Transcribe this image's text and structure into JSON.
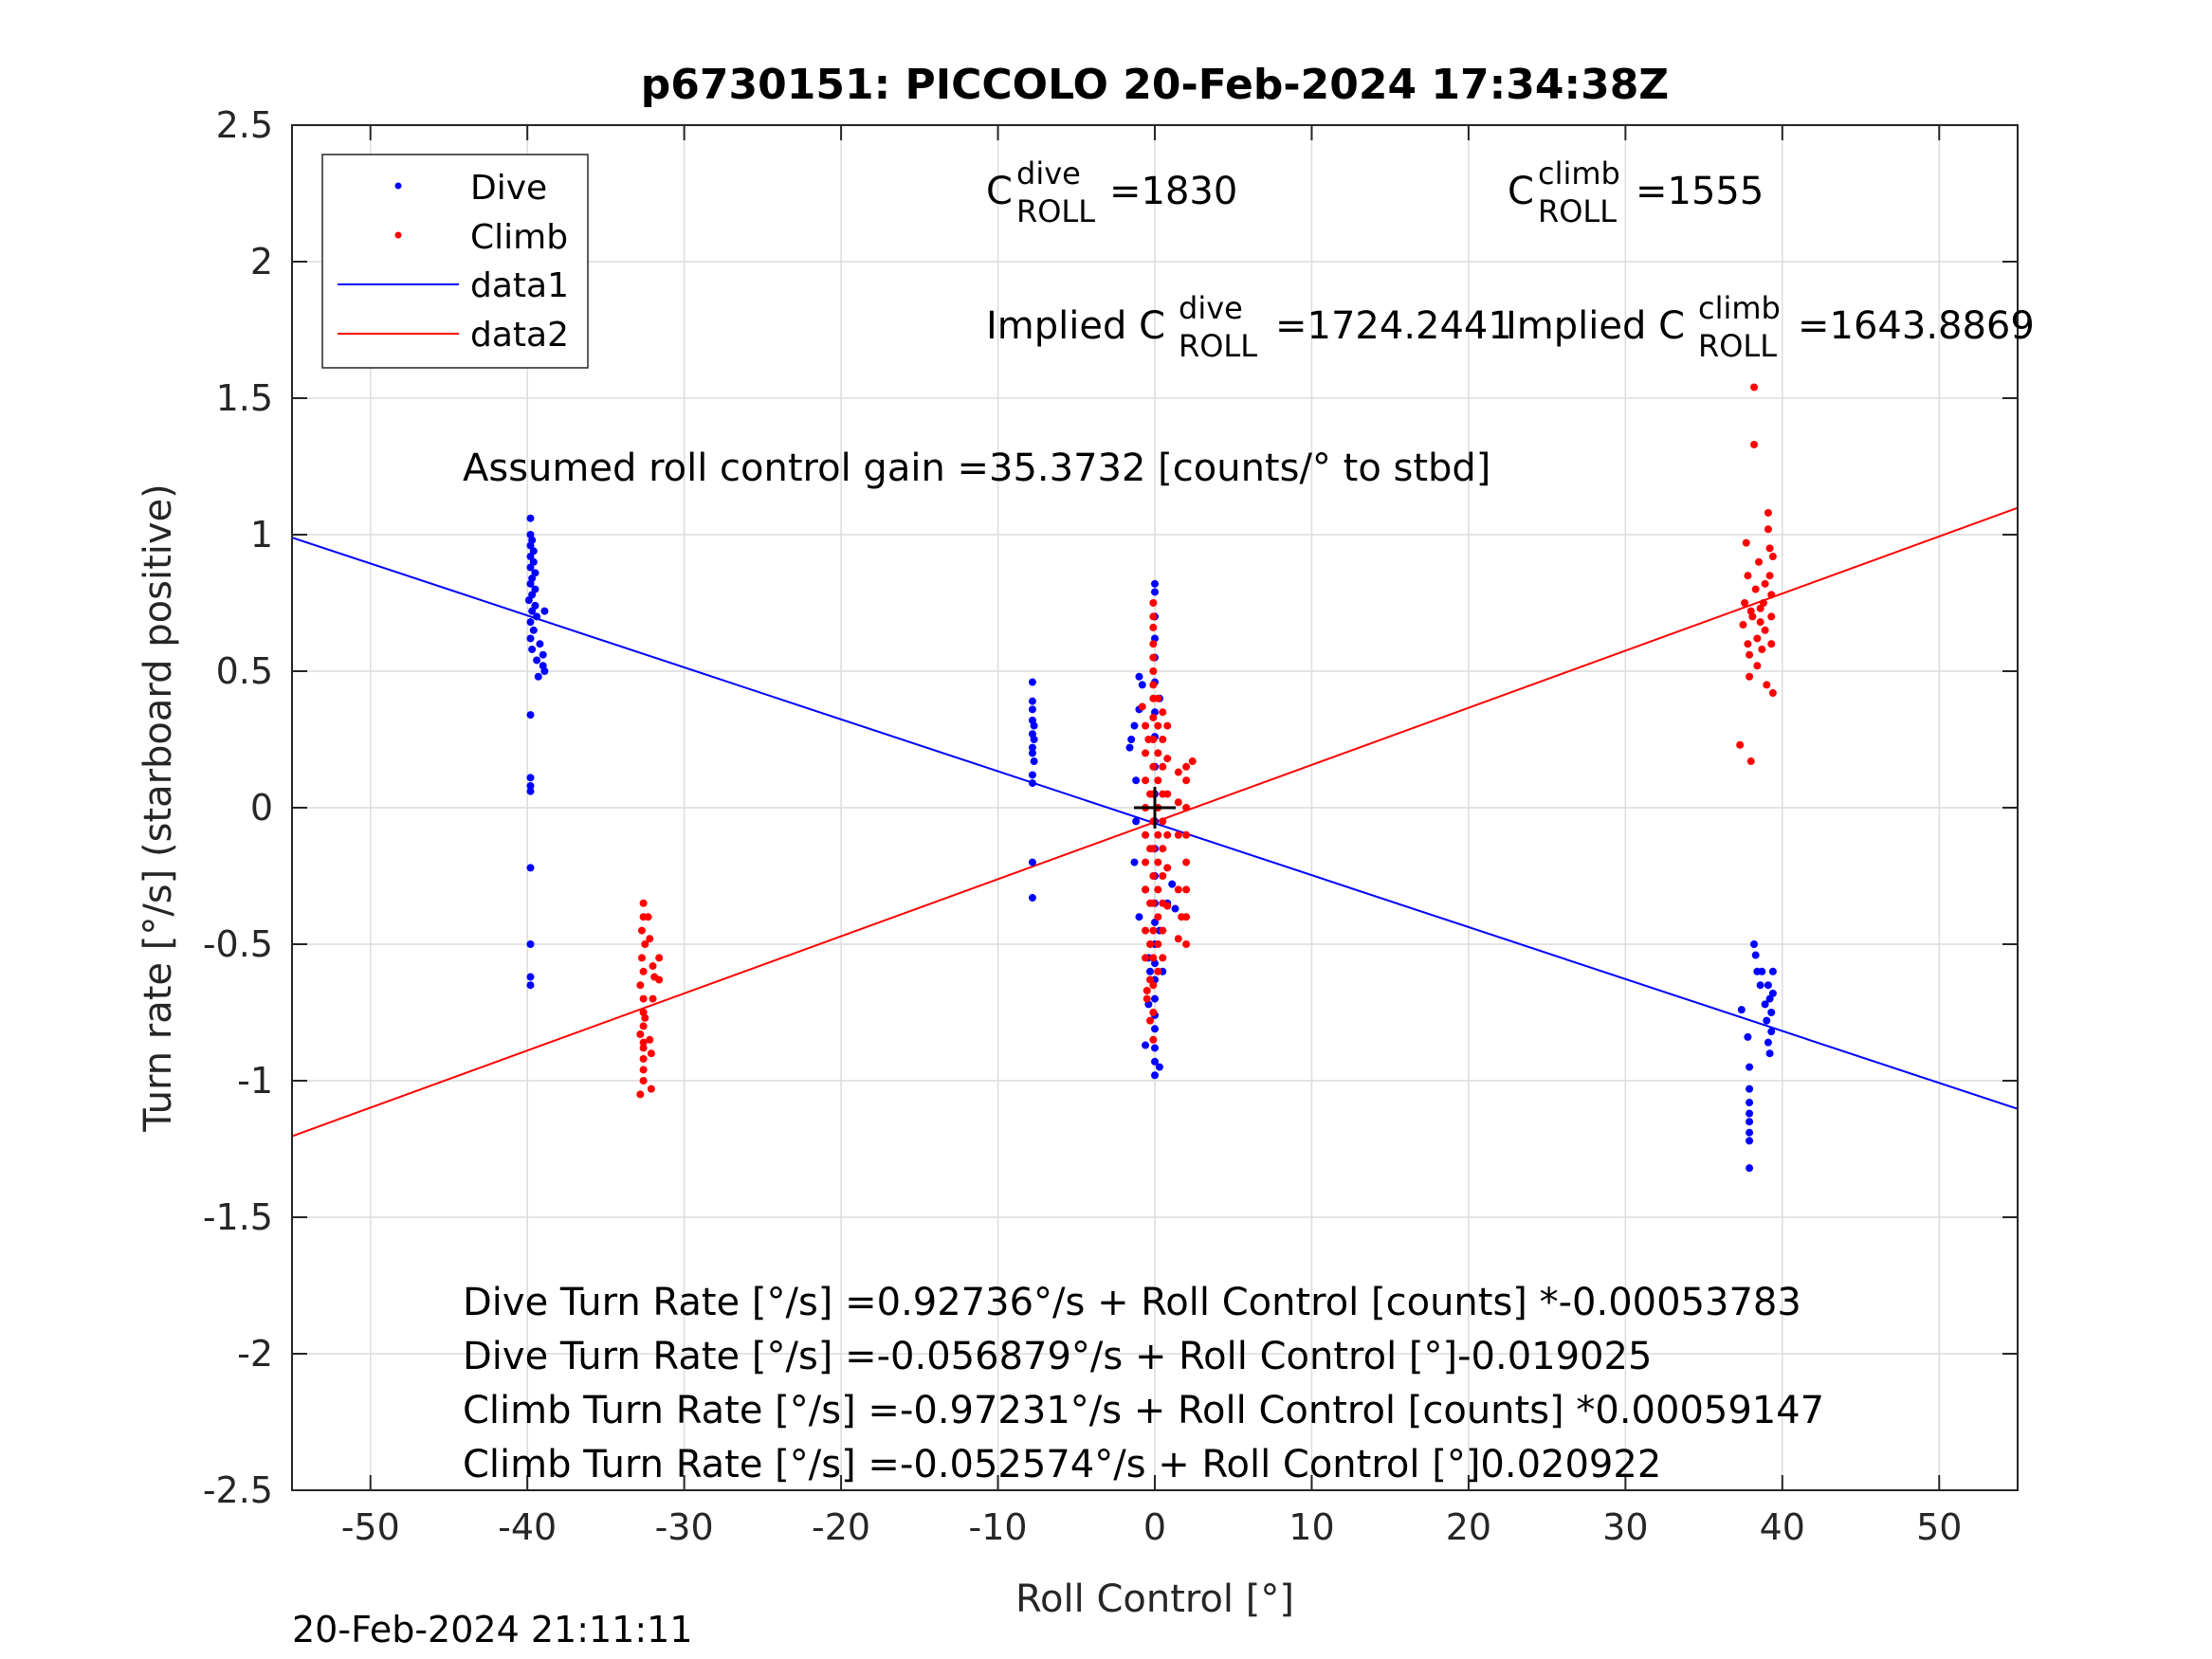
{
  "chart_data": {
    "type": "scatter",
    "title": "p6730151: PICCOLO 20-Feb-2024 17:34:38Z",
    "xlabel": "Roll Control [°]",
    "ylabel": "Turn rate [°/s] (starboard positive)",
    "xlim": [
      -55,
      55
    ],
    "ylim": [
      -2.5,
      2.5
    ],
    "xticks": [
      -50,
      -40,
      -30,
      -20,
      -10,
      0,
      10,
      20,
      30,
      40,
      50
    ],
    "yticks": [
      -2.5,
      -2,
      -1.5,
      -1,
      -0.5,
      0,
      0.5,
      1,
      1.5,
      2,
      2.5
    ],
    "xtick_labels": [
      "-50",
      "-40",
      "-30",
      "-20",
      "-10",
      "0",
      "10",
      "20",
      "30",
      "40",
      "50"
    ],
    "ytick_labels": [
      "-2.5",
      "-2",
      "-1.5",
      "-1",
      "-0.5",
      "0",
      "0.5",
      "1",
      "1.5",
      "2",
      "2.5"
    ],
    "grid": true,
    "legend_position": "top-left",
    "legend": [
      "Dive",
      "Climb",
      "data1",
      "data2"
    ],
    "series": [
      {
        "name": "Dive",
        "kind": "points",
        "color": "#0000ff",
        "points": [
          [
            -39.8,
            1.06
          ],
          [
            -39.8,
            1.0
          ],
          [
            -39.7,
            0.98
          ],
          [
            -39.8,
            0.96
          ],
          [
            -39.6,
            0.94
          ],
          [
            -39.8,
            0.92
          ],
          [
            -39.6,
            0.9
          ],
          [
            -39.8,
            0.88
          ],
          [
            -39.5,
            0.86
          ],
          [
            -39.7,
            0.84
          ],
          [
            -39.8,
            0.82
          ],
          [
            -39.5,
            0.8
          ],
          [
            -39.7,
            0.78
          ],
          [
            -39.9,
            0.76
          ],
          [
            -39.5,
            0.74
          ],
          [
            -39.7,
            0.72
          ],
          [
            -39.4,
            0.7
          ],
          [
            -39.8,
            0.68
          ],
          [
            -39.6,
            0.65
          ],
          [
            -39.8,
            0.62
          ],
          [
            -39.2,
            0.6
          ],
          [
            -39.7,
            0.58
          ],
          [
            -39.0,
            0.56
          ],
          [
            -39.4,
            0.54
          ],
          [
            -39.0,
            0.52
          ],
          [
            -38.9,
            0.5
          ],
          [
            -39.3,
            0.48
          ],
          [
            -38.9,
            0.72
          ],
          [
            -39.8,
            0.34
          ],
          [
            -39.8,
            0.11
          ],
          [
            -39.8,
            0.08
          ],
          [
            -39.8,
            0.06
          ],
          [
            -39.8,
            -0.22
          ],
          [
            -39.8,
            -0.5
          ],
          [
            -39.8,
            -0.62
          ],
          [
            -39.8,
            -0.65
          ],
          [
            -7.8,
            0.46
          ],
          [
            -7.8,
            0.39
          ],
          [
            -7.8,
            0.36
          ],
          [
            -7.8,
            0.32
          ],
          [
            -7.7,
            0.3
          ],
          [
            -7.8,
            0.27
          ],
          [
            -7.7,
            0.25
          ],
          [
            -7.8,
            0.22
          ],
          [
            -7.8,
            0.2
          ],
          [
            -7.7,
            0.17
          ],
          [
            -7.8,
            0.12
          ],
          [
            -7.8,
            0.09
          ],
          [
            -7.8,
            -0.2
          ],
          [
            -7.8,
            -0.33
          ],
          [
            -1.5,
            0.25
          ],
          [
            -1.6,
            0.22
          ],
          [
            -1.3,
            0.3
          ],
          [
            -1.2,
            0.1
          ],
          [
            -1.2,
            -0.05
          ],
          [
            -1.3,
            -0.2
          ],
          [
            -1.0,
            0.48
          ],
          [
            -1.0,
            0.36
          ],
          [
            -1.0,
            -0.4
          ],
          [
            -0.8,
            0.45
          ],
          [
            -0.6,
            -0.3
          ],
          [
            -0.4,
            -0.55
          ],
          [
            -0.3,
            -0.6
          ],
          [
            -0.6,
            -0.87
          ],
          [
            -0.4,
            -0.72
          ],
          [
            0.0,
            0.82
          ],
          [
            0.0,
            0.79
          ],
          [
            0.0,
            0.7
          ],
          [
            0.0,
            0.62
          ],
          [
            0.0,
            0.55
          ],
          [
            0.0,
            0.46
          ],
          [
            0.0,
            0.35
          ],
          [
            0.0,
            0.26
          ],
          [
            0.0,
            0.15
          ],
          [
            0.0,
            0.05
          ],
          [
            0.0,
            -0.05
          ],
          [
            0.0,
            -0.15
          ],
          [
            0.0,
            -0.25
          ],
          [
            0.0,
            -0.35
          ],
          [
            0.0,
            -0.42
          ],
          [
            0.0,
            -0.5
          ],
          [
            0.0,
            -0.57
          ],
          [
            0.0,
            -0.63
          ],
          [
            0.0,
            -0.7
          ],
          [
            0.0,
            -0.76
          ],
          [
            0.0,
            -0.81
          ],
          [
            0.0,
            -0.88
          ],
          [
            0.0,
            -0.93
          ],
          [
            0.0,
            -0.98
          ],
          [
            0.3,
            -0.95
          ],
          [
            0.3,
            -0.45
          ],
          [
            0.3,
            0.4
          ],
          [
            0.5,
            -0.6
          ],
          [
            0.8,
            -0.35
          ],
          [
            1.1,
            -0.28
          ],
          [
            1.3,
            -0.37
          ],
          [
            37.4,
            -0.74
          ],
          [
            37.8,
            -0.84
          ],
          [
            37.9,
            -0.95
          ],
          [
            37.9,
            -1.03
          ],
          [
            37.9,
            -1.08
          ],
          [
            37.9,
            -1.12
          ],
          [
            37.9,
            -1.15
          ],
          [
            37.9,
            -1.19
          ],
          [
            37.9,
            -1.22
          ],
          [
            37.9,
            -1.32
          ],
          [
            38.2,
            -0.5
          ],
          [
            38.3,
            -0.54
          ],
          [
            38.4,
            -0.6
          ],
          [
            38.6,
            -0.65
          ],
          [
            38.7,
            -0.6
          ],
          [
            38.9,
            -0.72
          ],
          [
            39.0,
            -0.78
          ],
          [
            39.1,
            -0.86
          ],
          [
            39.1,
            -0.65
          ],
          [
            39.2,
            -0.7
          ],
          [
            39.2,
            -0.9
          ],
          [
            39.3,
            -0.75
          ],
          [
            39.3,
            -0.82
          ],
          [
            39.4,
            -0.6
          ],
          [
            39.4,
            -0.68
          ]
        ]
      },
      {
        "name": "Climb",
        "kind": "points",
        "color": "#ff0000",
        "points": [
          [
            -32.6,
            -0.35
          ],
          [
            -32.6,
            -0.4
          ],
          [
            -32.7,
            -0.45
          ],
          [
            -32.5,
            -0.5
          ],
          [
            -32.7,
            -0.55
          ],
          [
            -32.6,
            -0.6
          ],
          [
            -32.8,
            -0.65
          ],
          [
            -32.6,
            -0.7
          ],
          [
            -32.6,
            -0.75
          ],
          [
            -32.6,
            -0.8
          ],
          [
            -32.8,
            -0.83
          ],
          [
            -32.6,
            -0.86
          ],
          [
            -32.6,
            -0.88
          ],
          [
            -32.6,
            -0.92
          ],
          [
            -32.6,
            -0.96
          ],
          [
            -32.6,
            -1.0
          ],
          [
            -32.8,
            -1.05
          ],
          [
            -32.1,
            -1.03
          ],
          [
            -32.2,
            -0.85
          ],
          [
            -32.1,
            -0.9
          ],
          [
            -32.0,
            -0.7
          ],
          [
            -31.9,
            -0.62
          ],
          [
            -31.6,
            -0.55
          ],
          [
            -31.6,
            -0.63
          ],
          [
            -32.0,
            -0.58
          ],
          [
            -32.2,
            -0.48
          ],
          [
            -32.3,
            -0.4
          ],
          [
            -32.5,
            -0.77
          ],
          [
            -0.8,
            0.37
          ],
          [
            -0.6,
            0.3
          ],
          [
            -0.6,
            0.2
          ],
          [
            -0.6,
            0.1
          ],
          [
            -0.6,
            0.0
          ],
          [
            -0.6,
            -0.1
          ],
          [
            -0.6,
            -0.2
          ],
          [
            -0.6,
            -0.3
          ],
          [
            -0.6,
            -0.45
          ],
          [
            -0.6,
            -0.55
          ],
          [
            -0.5,
            -0.67
          ],
          [
            -0.5,
            -0.7
          ],
          [
            -0.4,
            0.25
          ],
          [
            -0.3,
            0.05
          ],
          [
            -0.3,
            -0.15
          ],
          [
            -0.3,
            -0.35
          ],
          [
            -0.3,
            -0.5
          ],
          [
            -0.3,
            -0.63
          ],
          [
            -0.3,
            -0.78
          ],
          [
            -0.1,
            0.75
          ],
          [
            -0.1,
            0.7
          ],
          [
            -0.1,
            0.66
          ],
          [
            -0.1,
            0.6
          ],
          [
            -0.1,
            0.55
          ],
          [
            -0.1,
            0.5
          ],
          [
            -0.1,
            0.45
          ],
          [
            -0.1,
            0.4
          ],
          [
            -0.1,
            0.33
          ],
          [
            -0.1,
            0.25
          ],
          [
            -0.1,
            0.15
          ],
          [
            -0.1,
            0.05
          ],
          [
            -0.1,
            -0.05
          ],
          [
            -0.1,
            -0.15
          ],
          [
            -0.1,
            -0.25
          ],
          [
            -0.1,
            -0.35
          ],
          [
            -0.1,
            -0.45
          ],
          [
            -0.1,
            -0.55
          ],
          [
            -0.1,
            -0.65
          ],
          [
            -0.1,
            -0.75
          ],
          [
            -0.1,
            -0.85
          ],
          [
            0.2,
            0.4
          ],
          [
            0.2,
            0.3
          ],
          [
            0.2,
            0.2
          ],
          [
            0.2,
            0.1
          ],
          [
            0.2,
            0.0
          ],
          [
            0.2,
            -0.1
          ],
          [
            0.2,
            -0.2
          ],
          [
            0.2,
            -0.3
          ],
          [
            0.2,
            -0.4
          ],
          [
            0.2,
            -0.5
          ],
          [
            0.2,
            -0.6
          ],
          [
            0.5,
            0.35
          ],
          [
            0.5,
            0.25
          ],
          [
            0.5,
            0.15
          ],
          [
            0.5,
            0.05
          ],
          [
            0.5,
            -0.05
          ],
          [
            0.5,
            -0.15
          ],
          [
            0.5,
            -0.25
          ],
          [
            0.5,
            -0.35
          ],
          [
            0.5,
            -0.45
          ],
          [
            0.5,
            -0.55
          ],
          [
            0.8,
            0.3
          ],
          [
            0.8,
            0.18
          ],
          [
            0.8,
            0.05
          ],
          [
            0.8,
            -0.1
          ],
          [
            0.8,
            -0.22
          ],
          [
            0.8,
            -0.36
          ],
          [
            1.5,
            0.13
          ],
          [
            1.5,
            0.02
          ],
          [
            1.5,
            -0.1
          ],
          [
            1.5,
            -0.3
          ],
          [
            1.5,
            -0.48
          ],
          [
            1.7,
            -0.4
          ],
          [
            2.0,
            0.15
          ],
          [
            2.0,
            0.1
          ],
          [
            2.0,
            0.0
          ],
          [
            2.0,
            -0.1
          ],
          [
            2.0,
            -0.2
          ],
          [
            2.0,
            -0.3
          ],
          [
            2.0,
            -0.4
          ],
          [
            2.0,
            -0.5
          ],
          [
            2.4,
            0.17
          ],
          [
            37.3,
            0.23
          ],
          [
            37.5,
            0.67
          ],
          [
            37.6,
            0.75
          ],
          [
            37.7,
            0.97
          ],
          [
            37.8,
            0.85
          ],
          [
            37.8,
            0.6
          ],
          [
            37.9,
            0.48
          ],
          [
            38.0,
            0.17
          ],
          [
            38.1,
            0.7
          ],
          [
            38.2,
            1.54
          ],
          [
            38.2,
            1.33
          ],
          [
            38.3,
            0.8
          ],
          [
            38.4,
            0.62
          ],
          [
            38.4,
            0.52
          ],
          [
            38.5,
            0.9
          ],
          [
            38.6,
            0.73
          ],
          [
            38.7,
            0.58
          ],
          [
            38.8,
            0.75
          ],
          [
            38.9,
            0.65
          ],
          [
            39.0,
            0.45
          ],
          [
            39.1,
            1.08
          ],
          [
            39.1,
            1.02
          ],
          [
            39.2,
            0.95
          ],
          [
            39.2,
            0.85
          ],
          [
            39.3,
            0.78
          ],
          [
            39.3,
            0.7
          ],
          [
            39.3,
            0.6
          ],
          [
            39.4,
            0.92
          ],
          [
            39.4,
            0.42
          ],
          [
            38.0,
            0.72
          ],
          [
            38.6,
            0.68
          ],
          [
            37.9,
            0.56
          ],
          [
            38.9,
            0.82
          ]
        ]
      },
      {
        "name": "data1",
        "kind": "line",
        "color": "#0000ff",
        "intercept": -0.056879,
        "slope": -0.019025
      },
      {
        "name": "data2",
        "kind": "line",
        "color": "#ff0000",
        "intercept": -0.052574,
        "slope": 0.020922
      }
    ],
    "marker": [
      0,
      0
    ],
    "annotations": {
      "c_dive_label": "=1830",
      "c_climb_label": "=1555",
      "implied_dive_label": "=1724.2441",
      "implied_climb_label": "=1643.8869",
      "implied_prefix": "Implied C",
      "c_letter": "C",
      "sup_dive": "dive",
      "sup_climb": "climb",
      "sub_roll": "ROLL",
      "gain_text": "Assumed roll control gain =35.3732 [counts/° to stbd]",
      "eq1": "Dive Turn Rate [°/s] =0.92736°/s + Roll Control [counts] *-0.00053783",
      "eq2": "Dive Turn Rate [°/s] =-0.056879°/s + Roll Control [°]-0.019025",
      "eq3": "Climb Turn Rate [°/s] =-0.97231°/s + Roll Control [counts] *0.00059147",
      "eq4": "Climb Turn Rate [°/s] =-0.052574°/s + Roll Control [°]0.020922"
    },
    "timestamp": "20-Feb-2024 21:11:11"
  }
}
